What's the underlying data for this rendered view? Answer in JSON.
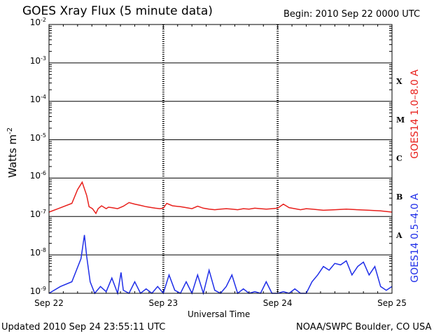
{
  "title": "GOES Xray Flux (5 minute data)",
  "begin": "Begin:  2010 Sep 22 0000 UTC",
  "updated": "Updated 2010 Sep 24 23:55:11 UTC",
  "credit": "NOAA/SWPC Boulder, CO USA",
  "colors": {
    "long": "#e8201c",
    "short": "#1f2ee8",
    "axis": "#000000"
  },
  "chart_data": {
    "type": "line",
    "title": "GOES Xray Flux (5 minute data)",
    "xlabel": "Universal Time",
    "ylabel": "Watts m",
    "ylabel_sup": "-2",
    "y_scale": "log",
    "ylim": [
      1e-09,
      0.01
    ],
    "grid": true,
    "yticks": [
      {
        "base": "10",
        "exp": "-2"
      },
      {
        "base": "10",
        "exp": "-3"
      },
      {
        "base": "10",
        "exp": "-4"
      },
      {
        "base": "10",
        "exp": "-5"
      },
      {
        "base": "10",
        "exp": "-6"
      },
      {
        "base": "10",
        "exp": "-7"
      },
      {
        "base": "10",
        "exp": "-8"
      },
      {
        "base": "10",
        "exp": "-9"
      }
    ],
    "xticks": [
      "Sep 22",
      "Sep 23",
      "Sep 24",
      "Sep 25"
    ],
    "xlim_days": [
      0,
      3
    ],
    "flare_classes": [
      {
        "label": "X",
        "level": 0.0001
      },
      {
        "label": "M",
        "level": 1e-05
      },
      {
        "label": "C",
        "level": 1e-06
      },
      {
        "label": "B",
        "level": 1e-07
      },
      {
        "label": "A",
        "level": 1e-08
      }
    ],
    "series": [
      {
        "name": "GOES14 1.0–8.0 A",
        "x": [
          0.0,
          0.08,
          0.2,
          0.25,
          0.29,
          0.33,
          0.35,
          0.38,
          0.41,
          0.43,
          0.46,
          0.5,
          0.52,
          0.55,
          0.6,
          0.65,
          0.7,
          0.75,
          0.8,
          0.85,
          0.9,
          0.93,
          0.97,
          1.0,
          1.03,
          1.08,
          1.15,
          1.2,
          1.25,
          1.3,
          1.35,
          1.4,
          1.45,
          1.5,
          1.55,
          1.6,
          1.65,
          1.7,
          1.75,
          1.8,
          1.85,
          1.9,
          1.95,
          2.0,
          2.05,
          2.1,
          2.15,
          2.2,
          2.25,
          2.3,
          2.4,
          2.5,
          2.6,
          2.7,
          2.8,
          2.9,
          3.0
        ],
        "y": [
          1.3e-07,
          1.6e-07,
          2.2e-07,
          5e-07,
          7.8e-07,
          3.5e-07,
          1.8e-07,
          1.6e-07,
          1.2e-07,
          1.6e-07,
          1.9e-07,
          1.6e-07,
          1.75e-07,
          1.7e-07,
          1.6e-07,
          1.85e-07,
          2.3e-07,
          2.1e-07,
          1.95e-07,
          1.8e-07,
          1.7e-07,
          1.65e-07,
          1.6e-07,
          1.65e-07,
          2.2e-07,
          1.9e-07,
          1.8e-07,
          1.7e-07,
          1.6e-07,
          1.85e-07,
          1.65e-07,
          1.55e-07,
          1.5e-07,
          1.55e-07,
          1.6e-07,
          1.55e-07,
          1.5e-07,
          1.6e-07,
          1.55e-07,
          1.65e-07,
          1.6e-07,
          1.55e-07,
          1.6e-07,
          1.65e-07,
          2.1e-07,
          1.7e-07,
          1.6e-07,
          1.5e-07,
          1.6e-07,
          1.55e-07,
          1.45e-07,
          1.5e-07,
          1.55e-07,
          1.5e-07,
          1.45e-07,
          1.4e-07,
          1.3e-07
        ]
      },
      {
        "name": "GOES14 0.5–4.0 A",
        "x": [
          0.0,
          0.1,
          0.2,
          0.28,
          0.31,
          0.33,
          0.36,
          0.4,
          0.45,
          0.5,
          0.55,
          0.6,
          0.63,
          0.65,
          0.7,
          0.75,
          0.8,
          0.85,
          0.9,
          0.95,
          1.0,
          1.05,
          1.1,
          1.15,
          1.2,
          1.25,
          1.3,
          1.35,
          1.4,
          1.45,
          1.5,
          1.55,
          1.6,
          1.65,
          1.7,
          1.75,
          1.8,
          1.85,
          1.9,
          1.95,
          2.0,
          2.05,
          2.1,
          2.15,
          2.2,
          2.25,
          2.3,
          2.35,
          2.4,
          2.45,
          2.5,
          2.55,
          2.6,
          2.65,
          2.7,
          2.75,
          2.8,
          2.85,
          2.9,
          2.95,
          3.0
        ],
        "y": [
          1e-09,
          1.5e-09,
          2e-09,
          8e-09,
          3.3e-08,
          9e-09,
          2e-09,
          1e-09,
          1.5e-09,
          1.1e-09,
          2.5e-09,
          1e-09,
          3.5e-09,
          1.2e-09,
          1e-09,
          2e-09,
          1e-09,
          1.3e-09,
          1e-09,
          1.5e-09,
          1e-09,
          3e-09,
          1.2e-09,
          1e-09,
          2e-09,
          1e-09,
          3e-09,
          1e-09,
          4e-09,
          1.2e-09,
          1e-09,
          1.5e-09,
          3e-09,
          1e-09,
          1.3e-09,
          1e-09,
          1.1e-09,
          1e-09,
          2e-09,
          1e-09,
          1e-09,
          1.1e-09,
          1e-09,
          1.3e-09,
          1e-09,
          1e-09,
          2e-09,
          3e-09,
          5e-09,
          4e-09,
          6e-09,
          5.5e-09,
          7e-09,
          3e-09,
          5e-09,
          6.5e-09,
          3e-09,
          5e-09,
          1.5e-09,
          1.2e-09,
          1.5e-09
        ]
      }
    ]
  }
}
